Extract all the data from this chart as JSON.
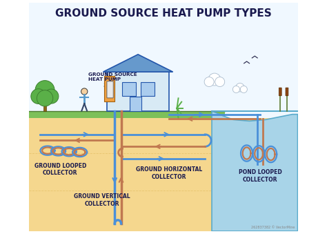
{
  "title": "GROUND SOURCE HEAT PUMP TYPES",
  "title_color": "#1a1a4e",
  "title_fontsize": 11,
  "bg_color": "#ffffff",
  "ground_color": "#f5d78e",
  "grass_color": "#7dc05a",
  "pond_water_color": "#a8d4e8",
  "pond_outline_color": "#5aabcc",
  "labels": {
    "ground_source_heat_pump": "GROUND SOURCE\nHEAT PUMP",
    "ground_looped": "GROUND LOOPED\nCOLLECTOR",
    "ground_vertical": "GROUND VERTICAL\nCOLLECTOR",
    "ground_horizontal": "GROUND HORIZONTAL\nCOLLECTOR",
    "pond_looped": "POND LOOPED\nCOLLECTOR"
  },
  "pipe_blue": "#4a90d9",
  "pipe_warm": "#c07850",
  "label_fontsize": 5.5,
  "watermark": "262837382 © VectorMine"
}
